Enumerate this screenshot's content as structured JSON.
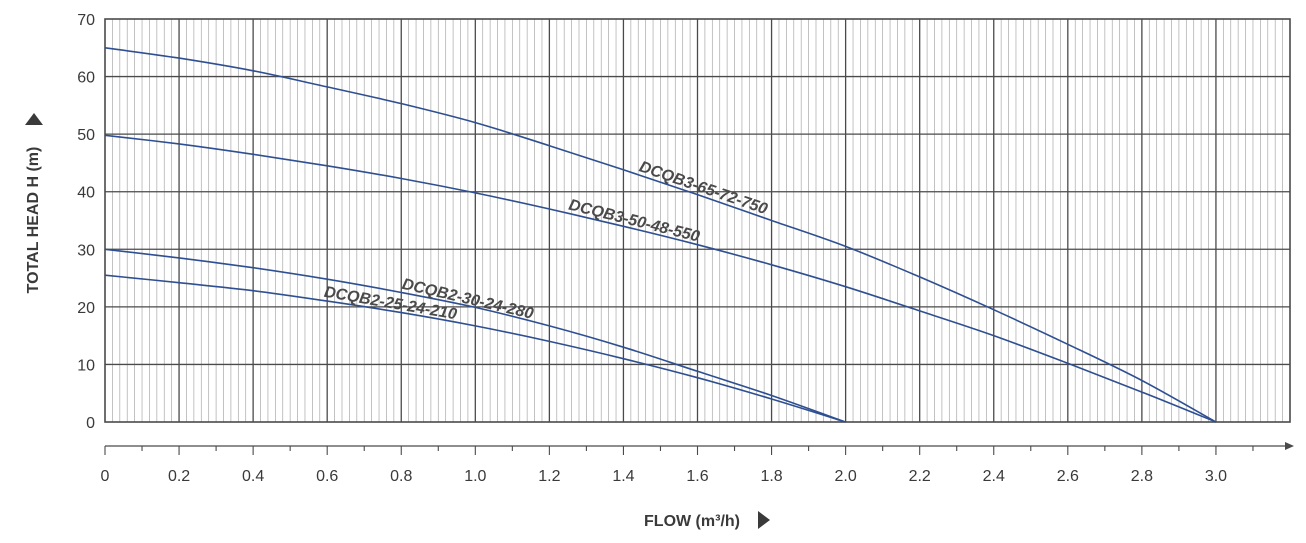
{
  "chart_data": {
    "type": "line",
    "title": "",
    "xlabel": "FLOW (m³/h)",
    "ylabel": "TOTAL HEAD H (m)",
    "xlim": [
      0,
      3.2
    ],
    "ylim": [
      0,
      70
    ],
    "x_ticks": [
      "0",
      "0.2",
      "0.4",
      "0.6",
      "0.8",
      "1.0",
      "1.2",
      "1.4",
      "1.6",
      "1.8",
      "2.0",
      "2.2",
      "2.4",
      "2.6",
      "2.8",
      "3.0"
    ],
    "y_ticks": [
      "0",
      "10",
      "20",
      "30",
      "40",
      "50",
      "60",
      "70"
    ],
    "grid": true,
    "legend": "inline labels on curves",
    "colors": {
      "curve": "#2e4f91",
      "grid_major": "#4a4a4a",
      "grid_minor": "#a9a9a9",
      "text": "#3a3a3a"
    },
    "series": [
      {
        "name": "DCQB3-65-72-750",
        "x": [
          0,
          0.2,
          0.4,
          0.6,
          0.8,
          1.0,
          1.2,
          1.4,
          1.6,
          1.8,
          2.0,
          2.2,
          2.4,
          2.6,
          2.8,
          3.0
        ],
        "y": [
          65,
          63.2,
          61,
          58.2,
          55.3,
          52,
          48,
          43.8,
          39.5,
          35,
          30.5,
          25.2,
          19.5,
          13.5,
          7.2,
          0
        ]
      },
      {
        "name": "DCQB3-50-48-550",
        "x": [
          0,
          0.2,
          0.4,
          0.6,
          0.8,
          1.0,
          1.2,
          1.4,
          1.6,
          1.8,
          2.0,
          2.2,
          2.4,
          2.6,
          2.8,
          3.0
        ],
        "y": [
          49.8,
          48.3,
          46.5,
          44.5,
          42.3,
          39.8,
          37,
          34,
          30.8,
          27.3,
          23.5,
          19.3,
          15,
          10.2,
          5.2,
          0
        ]
      },
      {
        "name": "DCQB2-30-24-280",
        "x": [
          0,
          0.2,
          0.4,
          0.6,
          0.8,
          1.0,
          1.2,
          1.4,
          1.6,
          1.8,
          2.0
        ],
        "y": [
          30,
          28.5,
          26.8,
          24.8,
          22.5,
          19.9,
          16.7,
          13,
          8.8,
          4.6,
          0
        ]
      },
      {
        "name": "DCQB2-25-24-210",
        "x": [
          0,
          0.2,
          0.4,
          0.6,
          0.8,
          1.0,
          1.2,
          1.4,
          1.6,
          1.8,
          2.0
        ],
        "y": [
          25.5,
          24.2,
          22.8,
          21,
          19,
          16.7,
          14,
          11,
          7.7,
          4,
          0
        ]
      }
    ]
  }
}
